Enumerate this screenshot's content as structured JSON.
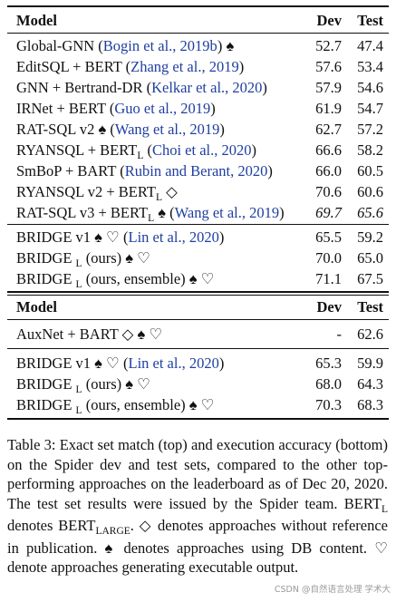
{
  "table_top": {
    "headers": {
      "model": "Model",
      "dev": "Dev",
      "test": "Test"
    },
    "group1": [
      {
        "name": "Global-GNN",
        "cite": "Bogin et al., 2019b",
        "marks": "♠",
        "dev": "52.7",
        "test": "47.4"
      },
      {
        "name": "EditSQL + BERT",
        "cite": "Zhang et al., 2019",
        "marks": "",
        "dev": "57.6",
        "test": "53.4"
      },
      {
        "name": "GNN + Bertrand-DR",
        "cite": "Kelkar et al., 2020",
        "marks": "",
        "dev": "57.9",
        "test": "54.6"
      },
      {
        "name": "IRNet + BERT",
        "cite": "Guo et al., 2019",
        "marks": "",
        "dev": "61.9",
        "test": "54.7"
      },
      {
        "name": "RAT-SQL v2 ♠",
        "cite": "Wang et al., 2019",
        "marks": "",
        "dev": "62.7",
        "test": "57.2"
      },
      {
        "name": "RYANSQL + BERT",
        "sub": "L",
        "cite": "Choi et al., 2020",
        "marks": "",
        "dev": "66.6",
        "test": "58.2"
      },
      {
        "name": "SmBoP + BART",
        "cite": "Rubin and Berant, 2020",
        "marks": "",
        "dev": "66.0",
        "test": "60.5"
      },
      {
        "name": "RYANSQL v2 + BERT",
        "sub": "L",
        "cite": "",
        "marks": " ◇",
        "dev": "70.6",
        "test": "60.6"
      },
      {
        "name": "RAT-SQL v3 + BERT",
        "sub": "L",
        "cite": "Wang et al., 2019",
        "marks": " ♠",
        "dev": "69.7",
        "test": "65.6"
      }
    ],
    "group2": [
      {
        "name": "BRIDGE v1 ♠ ♡",
        "cite": "Lin et al., 2020",
        "dev": "65.5",
        "test": "59.2"
      },
      {
        "name": "BRIDGE ",
        "sub": "L",
        "after": " (ours) ♠ ♡",
        "dev": "70.0",
        "test": "65.0"
      },
      {
        "name": "BRIDGE ",
        "sub": "L",
        "after": " (ours, ensemble) ♠ ♡",
        "dev": "71.1",
        "test": "67.5"
      }
    ]
  },
  "table_bottom": {
    "headers": {
      "model": "Model",
      "dev": "Dev",
      "test": "Test"
    },
    "auxnet": {
      "name": "AuxNet + BART ◇ ♠ ♡",
      "dev": "-",
      "test": "62.6"
    },
    "rows": [
      {
        "name": "BRIDGE v1 ♠ ♡",
        "cite": "Lin et al., 2020",
        "dev": "65.3",
        "test": "59.9"
      },
      {
        "name": "BRIDGE ",
        "sub": "L",
        "after": " (ours) ♠ ♡",
        "dev": "68.0",
        "test": "64.3"
      },
      {
        "name": "BRIDGE ",
        "sub": "L",
        "after": " (ours, ensemble) ♠ ♡",
        "dev": "70.3",
        "test": "68.3"
      }
    ]
  },
  "caption": {
    "part1": "Table 3: Exact set match (top) and execution accuracy (bottom) on the Spider dev and test sets, compared to the other top-performing approaches on the leaderboard as of Dec 20, 2020. The test set results were issued by the Spider team. BERT",
    "sub1": "L",
    "part2": " denotes BERT",
    "sub2": "LARGE",
    "part3": ". ◇ denotes approaches without reference in publication. ♠ denotes approaches using DB content. ♡ denote approaches generating executable output."
  },
  "watermark": "CSDN @自然语言处理 学术大"
}
